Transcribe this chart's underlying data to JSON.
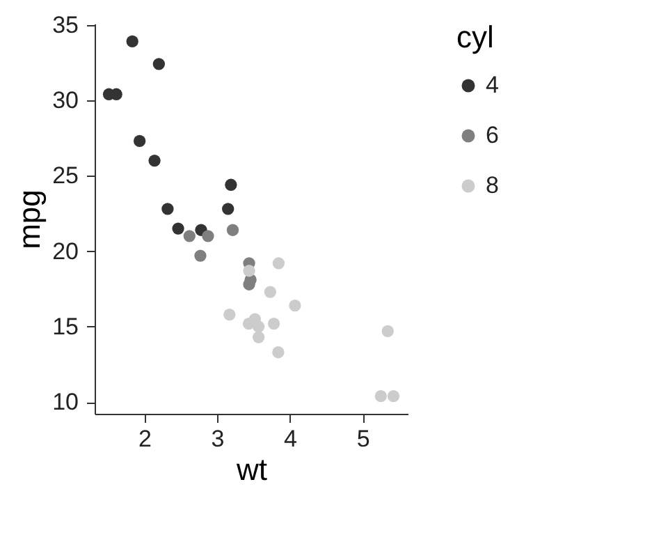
{
  "chart_data": {
    "type": "scatter",
    "xlabel": "wt",
    "ylabel": "mpg",
    "legend_title": "cyl",
    "legend": "right",
    "marker": "circle",
    "grid": false,
    "xlim": [
      1.317,
      5.62
    ],
    "xticks": [
      2,
      3,
      4,
      5
    ],
    "ylim": [
      9.225,
      35.075
    ],
    "yticks": [
      10,
      15,
      20,
      25,
      30,
      35
    ],
    "series": [
      {
        "name": "4",
        "color": "#333333",
        "x": [
          2.32,
          3.19,
          3.15,
          2.2,
          1.615,
          1.835,
          2.465,
          1.935,
          2.14,
          1.513,
          2.78
        ],
        "values": [
          22.8,
          24.4,
          22.8,
          32.4,
          30.4,
          33.9,
          21.5,
          27.3,
          26.0,
          30.4,
          21.4
        ]
      },
      {
        "name": "6",
        "color": "#7f7f7f",
        "x": [
          2.62,
          2.875,
          3.215,
          3.46,
          3.44,
          3.44,
          2.77
        ],
        "values": [
          21.0,
          21.0,
          21.4,
          18.1,
          19.2,
          17.8,
          19.7
        ]
      },
      {
        "name": "8",
        "color": "#cccccc",
        "x": [
          3.44,
          3.57,
          4.07,
          3.73,
          3.78,
          5.25,
          5.424,
          5.345,
          3.52,
          3.435,
          3.84,
          3.845,
          3.17,
          3.57
        ],
        "values": [
          18.7,
          14.3,
          16.4,
          17.3,
          15.2,
          10.4,
          10.4,
          14.7,
          15.5,
          15.2,
          13.3,
          19.2,
          15.8,
          15.0
        ]
      }
    ]
  }
}
